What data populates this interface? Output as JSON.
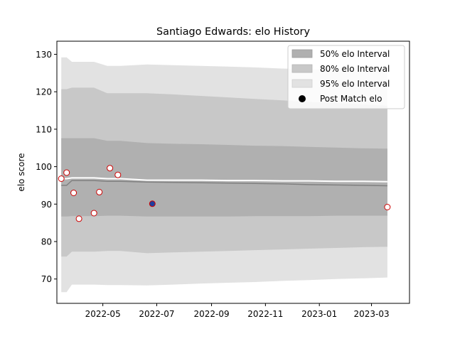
{
  "chart_data": {
    "type": "line",
    "title": "Santiago Edwards: elo History",
    "xlabel": "",
    "ylabel": "elo score",
    "x_ticks": [
      "2022-05",
      "2022-07",
      "2022-09",
      "2022-11",
      "2023-01",
      "2023-03"
    ],
    "y_ticks": [
      70,
      80,
      90,
      100,
      110,
      120,
      130
    ],
    "ylim": [
      63.5,
      133.5
    ],
    "xlim": [
      "2022-03-10",
      "2023-04-13"
    ],
    "grid": false,
    "legend_position": "top-right",
    "legend": {
      "band50": "50% elo Interval",
      "band80": "80% elo Interval",
      "band95": "95% elo Interval",
      "points": "Post Match elo"
    },
    "colors": {
      "band50": "#b0b0b0",
      "band80": "#c8c8c8",
      "band95": "#e2e2e2",
      "median_line": "#ffffff",
      "mean_line": "#808080",
      "point_edge": "#cc0000",
      "point_fill": "#ffffff",
      "highlight_fill": "#1f3f9f"
    },
    "band_x": [
      "2022-03-15",
      "2022-03-21",
      "2022-03-27",
      "2022-04-21",
      "2022-05-06",
      "2022-05-21",
      "2022-06-20",
      "2022-07-20",
      "2022-08-20",
      "2022-09-20",
      "2022-10-20",
      "2022-11-20",
      "2022-12-20",
      "2023-01-20",
      "2023-02-20",
      "2023-03-19"
    ],
    "band95": {
      "lower": [
        66.5,
        66.5,
        68.5,
        68.5,
        68.4,
        68.4,
        68.3,
        68.5,
        68.8,
        69.0,
        69.2,
        69.5,
        69.7,
        70.0,
        70.2,
        70.4
      ],
      "upper": [
        129.2,
        129.2,
        128.0,
        128.0,
        126.9,
        126.9,
        127.3,
        127.1,
        126.9,
        126.7,
        126.5,
        126.2,
        126.0,
        125.8,
        125.6,
        125.4
      ]
    },
    "band80": {
      "lower": [
        76.0,
        76.0,
        77.3,
        77.3,
        77.5,
        77.5,
        76.9,
        77.1,
        77.3,
        77.5,
        77.7,
        77.9,
        78.1,
        78.3,
        78.5,
        78.6
      ],
      "upper": [
        120.7,
        120.7,
        121.1,
        121.1,
        119.6,
        119.6,
        119.6,
        119.3,
        118.9,
        118.5,
        118.1,
        117.7,
        117.3,
        117.0,
        116.6,
        116.3
      ]
    },
    "band50": {
      "lower": [
        86.7,
        86.7,
        86.8,
        86.8,
        86.9,
        86.9,
        86.7,
        86.7,
        86.7,
        86.7,
        86.8,
        86.8,
        86.8,
        86.9,
        86.9,
        86.9
      ],
      "upper": [
        107.6,
        107.6,
        107.6,
        107.6,
        106.9,
        106.9,
        106.3,
        106.1,
        106.0,
        105.8,
        105.6,
        105.5,
        105.3,
        105.1,
        104.9,
        104.8
      ]
    },
    "median_line": [
      96.8,
      96.8,
      97.0,
      97.0,
      96.8,
      96.8,
      96.4,
      96.4,
      96.4,
      96.3,
      96.3,
      96.2,
      96.2,
      96.1,
      96.1,
      96.0
    ],
    "mean_line": [
      95.0,
      95.0,
      96.3,
      96.3,
      96.1,
      96.1,
      95.9,
      95.8,
      95.7,
      95.6,
      95.5,
      95.4,
      95.2,
      95.1,
      95.0,
      94.9
    ],
    "points": [
      {
        "x": "2022-03-15",
        "y": 96.8,
        "highlight": false
      },
      {
        "x": "2022-03-21",
        "y": 98.4,
        "highlight": false
      },
      {
        "x": "2022-03-29",
        "y": 93.0,
        "highlight": false
      },
      {
        "x": "2022-04-04",
        "y": 86.1,
        "highlight": false
      },
      {
        "x": "2022-04-21",
        "y": 87.6,
        "highlight": false
      },
      {
        "x": "2022-04-27",
        "y": 93.2,
        "highlight": false
      },
      {
        "x": "2022-05-09",
        "y": 99.6,
        "highlight": false
      },
      {
        "x": "2022-05-18",
        "y": 97.8,
        "highlight": false
      },
      {
        "x": "2022-06-26",
        "y": 90.1,
        "highlight": true
      },
      {
        "x": "2023-03-19",
        "y": 89.2,
        "highlight": false
      }
    ]
  }
}
